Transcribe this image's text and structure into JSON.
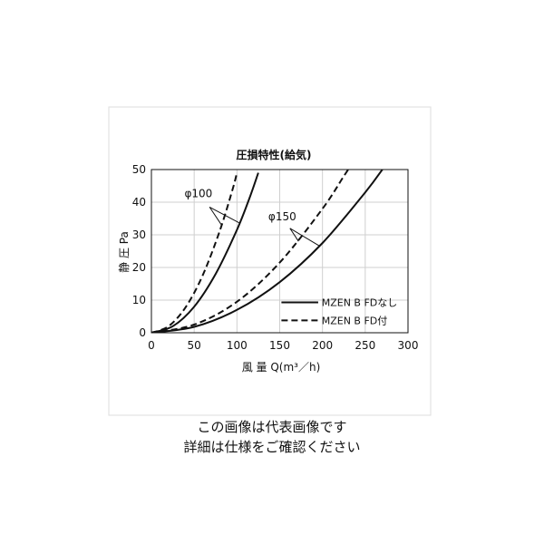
{
  "caption": {
    "line1": "この画像は代表画像です",
    "line2": "詳細は仕様をご確認ください"
  },
  "colors": {
    "ink": "#111111",
    "grid": "#cfcfcf",
    "frame": "#dddddd"
  },
  "chart_data": {
    "type": "line",
    "title": "圧損特性(給気)",
    "xlabel": "風 量 Q(m³／h)",
    "ylabel": "静 圧 Pa",
    "xlim": [
      0,
      300
    ],
    "ylim": [
      0,
      50
    ],
    "xticks": [
      0,
      50,
      100,
      150,
      200,
      250,
      300
    ],
    "yticks": [
      0,
      10,
      20,
      30,
      40,
      50
    ],
    "grid": true,
    "legend_position": "bottom-right",
    "legend": [
      {
        "label": "MZEN B FDなし",
        "style": "solid"
      },
      {
        "label": "MZEN B FD付",
        "style": "dashed"
      }
    ],
    "annotations": [
      {
        "text": "φ100",
        "series": [
          "φ100 FDなし",
          "φ100 FD付"
        ]
      },
      {
        "text": "φ150",
        "series": [
          "φ150 FDなし",
          "φ150 FD付"
        ]
      }
    ],
    "series": [
      {
        "group": "φ100",
        "style": "dashed",
        "x": [
          0,
          20,
          40,
          60,
          80,
          95,
          100
        ],
        "y": [
          0,
          2,
          7.8,
          17.6,
          31.3,
          44,
          49
        ]
      },
      {
        "group": "φ100",
        "style": "solid",
        "x": [
          0,
          25,
          50,
          75,
          100,
          115,
          125
        ],
        "y": [
          0,
          2,
          8,
          18,
          31.5,
          41.5,
          49
        ]
      },
      {
        "group": "φ150",
        "style": "dashed",
        "x": [
          0,
          50,
          100,
          150,
          200,
          225,
          235
        ],
        "y": [
          0,
          2.5,
          9.5,
          21.5,
          38,
          48,
          52
        ]
      },
      {
        "group": "φ150",
        "style": "solid",
        "x": [
          0,
          50,
          100,
          150,
          200,
          250,
          270
        ],
        "y": [
          0,
          1.8,
          7,
          15.5,
          27.5,
          43,
          50
        ]
      }
    ]
  }
}
